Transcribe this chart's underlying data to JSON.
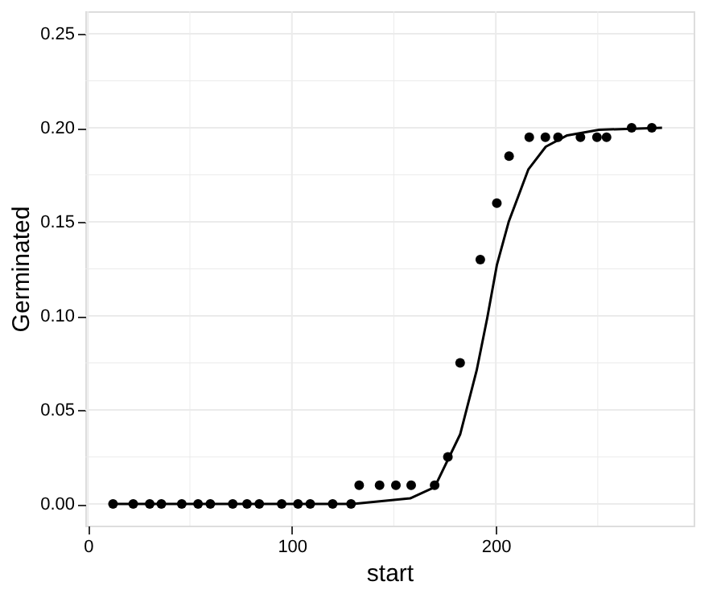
{
  "chart_data": {
    "type": "scatter",
    "xlabel": "start",
    "ylabel": "Germinated",
    "xlim": [
      -1.3,
      297
    ],
    "ylim": [
      -0.0115,
      0.262
    ],
    "xticks": [
      0,
      100,
      200
    ],
    "yticks": [
      {
        "value": 0,
        "label": "0.00"
      },
      0.05,
      {
        "value": 0.1,
        "label": "0.10"
      },
      0.15,
      {
        "value": 0.2,
        "label": "0.20"
      },
      0.25
    ],
    "grid": true,
    "series": [
      {
        "color": "#000000",
        "marker": "circle",
        "x": [
          12.3,
          22.2,
          30.3,
          36,
          46,
          54,
          60,
          71,
          78,
          84,
          95,
          103,
          109,
          120,
          129,
          133,
          143,
          151,
          158.5,
          170,
          176.5,
          182.5,
          192.4,
          200.5,
          206.5,
          216.4,
          224.3,
          230.5,
          241.5,
          249.6,
          254.3,
          266.6,
          276.5
        ],
        "values": [
          0,
          0,
          0,
          0,
          0,
          0,
          0,
          0,
          0,
          0,
          0,
          0,
          0,
          0,
          0,
          0.01,
          0.01,
          0.01,
          0.01,
          0.01,
          0.025,
          0.075,
          0.13,
          0.16,
          0.185,
          0.195,
          0.195,
          0.195,
          0.195,
          0.195,
          0.195,
          0.2,
          0.2
        ]
      },
      {
        "type": "line",
        "color": "#000000",
        "line_style": "solid",
        "x": [
          12.3,
          130,
          158,
          170,
          182.5,
          190.6,
          195.8,
          200.5,
          206.3,
          216,
          224.5,
          235,
          250.6,
          281.5
        ],
        "values": [
          0,
          0,
          0.003,
          0.009,
          0.037,
          0.071,
          0.099,
          0.127,
          0.15,
          0.178,
          0.19,
          0.196,
          0.199,
          0.2
        ]
      }
    ]
  }
}
